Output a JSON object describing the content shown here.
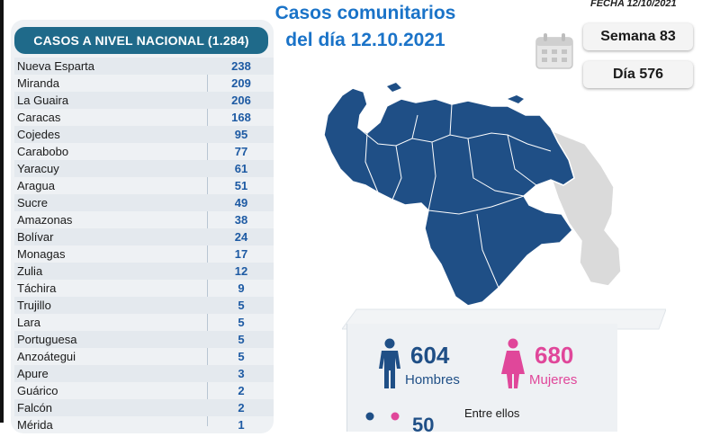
{
  "header": {
    "title_line1": "Casos comunitarios",
    "title_line2": "del día 12.10.2021",
    "fecha": "FECHA 12/10/2021"
  },
  "badges": {
    "semana": "Semana 83",
    "dia": "Día 576"
  },
  "table": {
    "heading": "CASOS A NIVEL NACIONAL (1.284)",
    "rows": [
      {
        "name": "Nueva Esparta",
        "value": "238"
      },
      {
        "name": "Miranda",
        "value": "209"
      },
      {
        "name": "La Guaira",
        "value": "206"
      },
      {
        "name": "Caracas",
        "value": "168"
      },
      {
        "name": "Cojedes",
        "value": "95"
      },
      {
        "name": "Carabobo",
        "value": "77"
      },
      {
        "name": "Yaracuy",
        "value": "61"
      },
      {
        "name": "Aragua",
        "value": "51"
      },
      {
        "name": "Sucre",
        "value": "49"
      },
      {
        "name": "Amazonas",
        "value": "38"
      },
      {
        "name": "Bolívar",
        "value": "24"
      },
      {
        "name": "Monagas",
        "value": "17"
      },
      {
        "name": "Zulia",
        "value": "12"
      },
      {
        "name": "Táchira",
        "value": "9"
      },
      {
        "name": "Trujillo",
        "value": "5"
      },
      {
        "name": "Lara",
        "value": "5"
      },
      {
        "name": "Portuguesa",
        "value": "5"
      },
      {
        "name": "Anzoátegui",
        "value": "5"
      },
      {
        "name": "Apure",
        "value": "3"
      },
      {
        "name": "Guárico",
        "value": "2"
      },
      {
        "name": "Falcón",
        "value": "2"
      },
      {
        "name": "Mérida",
        "value": "1"
      }
    ]
  },
  "stats": {
    "men_count": "604",
    "men_label": "Hombres",
    "women_count": "680",
    "women_label": "Mujeres",
    "entre": "Entre ellos",
    "partial_count": "50"
  },
  "colors": {
    "accent": "#1f6a8a",
    "value_blue": "#1d5aa3",
    "title_blue": "#1a73c8",
    "map_blue": "#1f4f86",
    "women_pink": "#e0479a"
  },
  "icons": [
    "calendar-icon",
    "man-icon",
    "woman-icon"
  ]
}
